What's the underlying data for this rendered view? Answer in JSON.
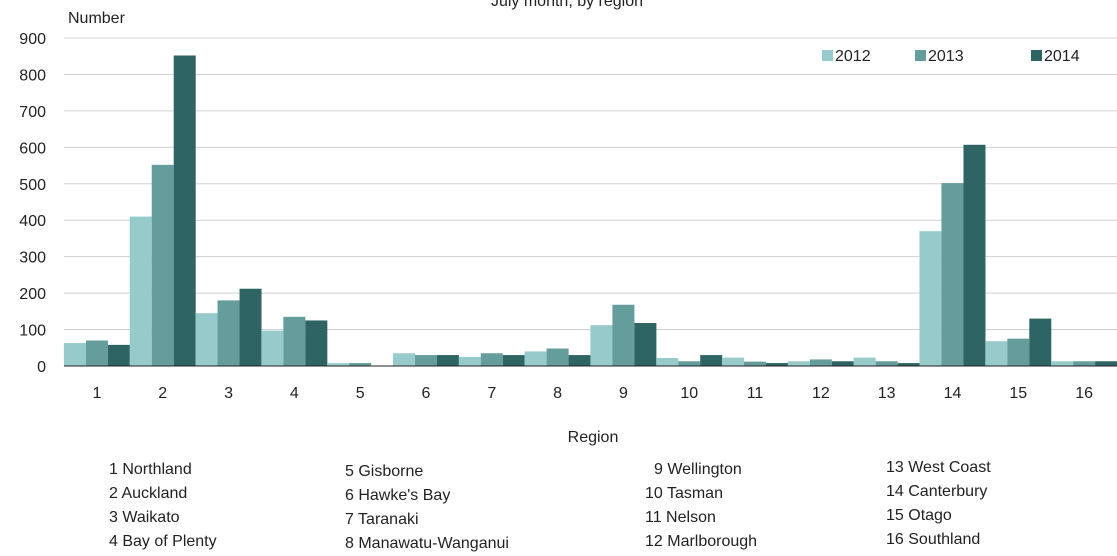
{
  "chart_data": {
    "type": "bar",
    "title": "July month, by region",
    "ylabel": "Number",
    "xlabel": "Region",
    "ylim": [
      0,
      900
    ],
    "yticks": [
      0,
      100,
      200,
      300,
      400,
      500,
      600,
      700,
      800,
      900
    ],
    "grid": true,
    "legend_position": "top-right",
    "categories": [
      "1",
      "2",
      "3",
      "4",
      "5",
      "6",
      "7",
      "8",
      "9",
      "10",
      "11",
      "12",
      "13",
      "14",
      "15",
      "16"
    ],
    "series": [
      {
        "name": "2012",
        "color": "#97cbcb",
        "values": [
          63,
          410,
          145,
          97,
          8,
          35,
          25,
          40,
          112,
          22,
          23,
          13,
          23,
          370,
          68,
          13
        ]
      },
      {
        "name": "2013",
        "color": "#659c9c",
        "values": [
          70,
          552,
          180,
          135,
          8,
          30,
          35,
          48,
          168,
          13,
          12,
          18,
          13,
          502,
          75,
          13
        ]
      },
      {
        "name": "2014",
        "color": "#2f6464",
        "values": [
          58,
          852,
          212,
          125,
          0,
          30,
          30,
          30,
          118,
          30,
          8,
          13,
          8,
          607,
          130,
          13
        ]
      }
    ]
  },
  "region_key": {
    "col1": [
      "1 Northland",
      "2 Auckland",
      "3 Waikato",
      "4 Bay of Plenty"
    ],
    "col2": [
      "5 Gisborne",
      "6 Hawke's Bay",
      "7 Taranaki",
      "8 Manawatu-Wanganui"
    ],
    "col3": [
      "9 Wellington",
      "10 Tasman",
      "11 Nelson",
      "12 Marlborough"
    ],
    "col4": [
      "13 West Coast",
      "14 Canterbury",
      "15 Otago",
      "16 Southland"
    ]
  }
}
